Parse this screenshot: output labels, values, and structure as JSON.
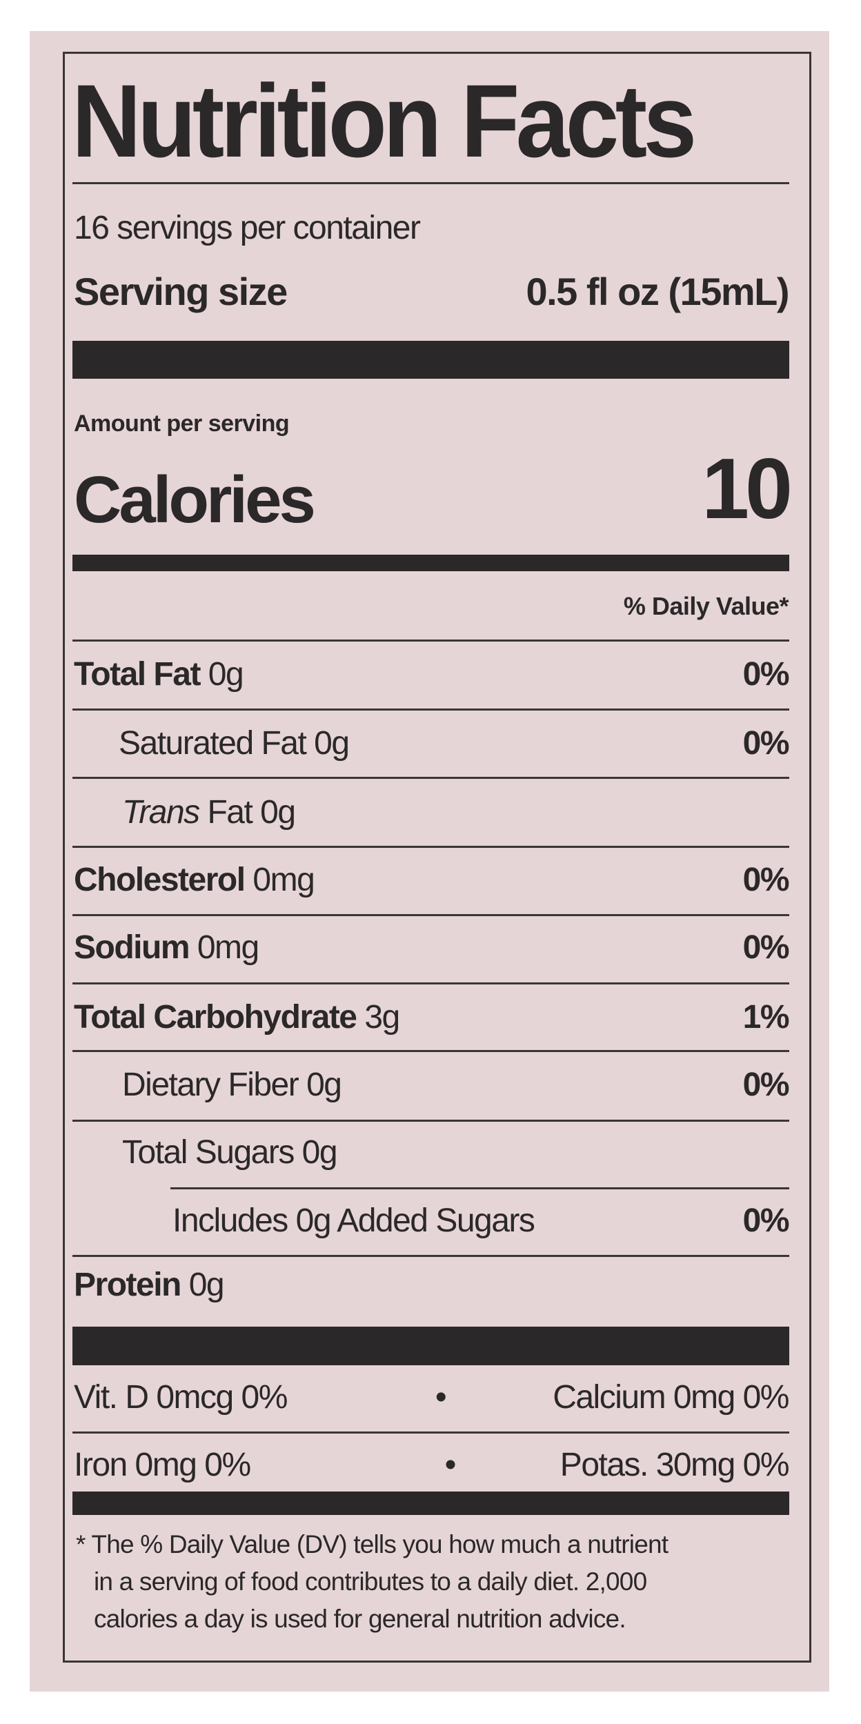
{
  "label": {
    "title": "Nutrition Facts",
    "servings_per_container": "16 servings per container",
    "serving_size_label": "Serving size",
    "serving_size_value": "0.5 fl oz (15mL)",
    "amount_per_serving": "Amount per serving",
    "calories_label": "Calories",
    "calories_value": "10",
    "daily_value_header": "% Daily Value*",
    "nutrients": [
      {
        "name": "Total Fat",
        "amount": "0g",
        "dv": "0%"
      },
      {
        "name": "Saturated Fat 0g",
        "amount": "",
        "dv": "0%"
      },
      {
        "name": "Trans",
        "amount": "Fat 0g",
        "dv": ""
      },
      {
        "name": "Cholesterol",
        "amount": "0mg",
        "dv": "0%"
      },
      {
        "name": "Sodium",
        "amount": "0mg",
        "dv": "0%"
      },
      {
        "name": "Total Carbohydrate",
        "amount": "3g",
        "dv": "1%"
      },
      {
        "name": "Dietary Fiber 0g",
        "amount": "",
        "dv": "0%"
      },
      {
        "name": "Total Sugars 0g",
        "amount": "",
        "dv": ""
      },
      {
        "name": "Includes 0g Added Sugars",
        "amount": "",
        "dv": "0%"
      },
      {
        "name": "Protein",
        "amount": "0g",
        "dv": ""
      }
    ],
    "vitamins": [
      {
        "left": "Vit. D 0mcg 0%",
        "right": "Calcium 0mg 0%"
      },
      {
        "left": "Iron 0mg 0%",
        "right": "Potas. 30mg 0%"
      }
    ],
    "separator": "•",
    "footnote": [
      "* The % Daily Value (DV) tells you how much a nutrient",
      "in a serving of food contributes to a daily diet. 2,000",
      "calories a day is used for general nutrition advice."
    ]
  },
  "colors": {
    "background": "#e6d5d7",
    "ink": "#2b2829"
  }
}
